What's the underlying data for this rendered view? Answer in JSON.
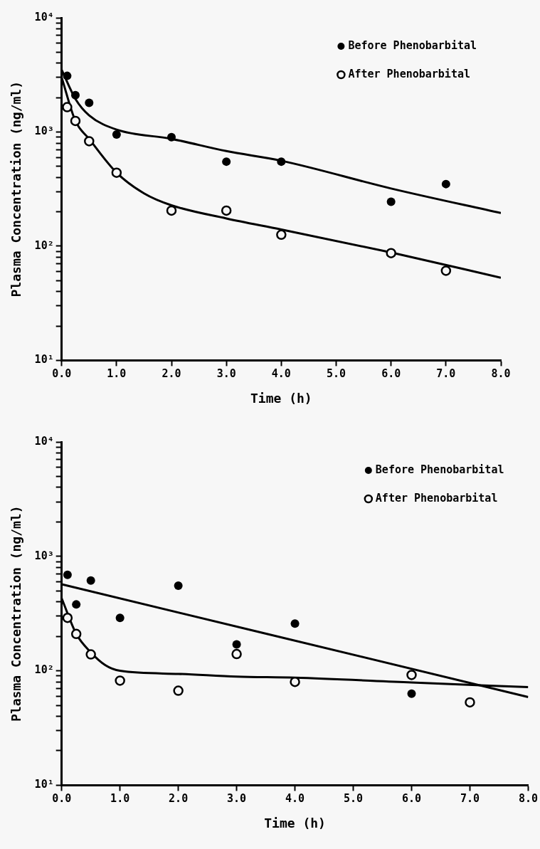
{
  "chart_data": [
    {
      "type": "scatter",
      "xlabel": "Time (h)",
      "ylabel": "Plasma Concentration (ng/ml)",
      "log": "y",
      "grid": false,
      "legend": "top right",
      "marker": "circle",
      "xlim": [
        0,
        8
      ],
      "xticks": [
        {
          "value": 0,
          "label": "0.0"
        },
        {
          "value": 1,
          "label": "1.0"
        },
        {
          "value": 2,
          "label": "2.0"
        },
        {
          "value": 3,
          "label": "3.0"
        },
        {
          "value": 4,
          "label": "4.0"
        },
        {
          "value": 5,
          "label": "5.0"
        },
        {
          "value": 6,
          "label": "6.0"
        },
        {
          "value": 7,
          "label": "7.0"
        },
        {
          "value": 8,
          "label": "8.0"
        }
      ],
      "ylim": [
        10,
        10000
      ],
      "yticks": [
        {
          "value": 10,
          "label": "10¹"
        },
        {
          "value": 20,
          "label": null
        },
        {
          "value": 30,
          "label": null
        },
        {
          "value": 40,
          "label": null
        },
        {
          "value": 50,
          "label": null
        },
        {
          "value": 60,
          "label": null
        },
        {
          "value": 70,
          "label": null
        },
        {
          "value": 80,
          "label": null
        },
        {
          "value": 90,
          "label": null
        },
        {
          "value": 100,
          "label": "10²"
        },
        {
          "value": 200,
          "label": null
        },
        {
          "value": 300,
          "label": null
        },
        {
          "value": 400,
          "label": null
        },
        {
          "value": 500,
          "label": null
        },
        {
          "value": 600,
          "label": null
        },
        {
          "value": 700,
          "label": null
        },
        {
          "value": 800,
          "label": null
        },
        {
          "value": 900,
          "label": null
        },
        {
          "value": 1000,
          "label": "10³"
        },
        {
          "value": 2000,
          "label": null
        },
        {
          "value": 3000,
          "label": null
        },
        {
          "value": 4000,
          "label": null
        },
        {
          "value": 5000,
          "label": null
        },
        {
          "value": 6000,
          "label": null
        },
        {
          "value": 7000,
          "label": null
        },
        {
          "value": 8000,
          "label": null
        },
        {
          "value": 9000,
          "label": null
        },
        {
          "value": 10000,
          "label": "10⁴"
        }
      ],
      "series": [
        {
          "name": "Before Phenobarbital",
          "color": "#000000",
          "x": [
            0.1,
            0.25,
            0.5,
            1,
            2,
            3,
            4,
            6,
            7
          ],
          "values": [
            3100,
            2100,
            1800,
            950,
            900,
            550,
            550,
            245,
            350
          ]
        },
        {
          "name": "After Phenobarbital",
          "color": "#000000",
          "x": [
            0.1,
            0.25,
            0.5,
            1,
            2,
            3,
            4,
            6,
            7
          ],
          "values": [
            1650,
            1250,
            830,
            440,
            205,
            205,
            126,
            87,
            61
          ]
        },
        {
          "type": "line",
          "color": "#000000",
          "marker": "none",
          "x": [
            0,
            0.25,
            0.5,
            1,
            2,
            3,
            4,
            6,
            8
          ],
          "values": [
            3500,
            1950,
            1400,
            1050,
            870,
            680,
            560,
            320,
            195
          ]
        },
        {
          "type": "line",
          "color": "#000000",
          "marker": "none",
          "x": [
            0,
            0.25,
            0.5,
            1,
            1.5,
            2,
            3,
            4,
            6,
            8
          ],
          "values": [
            3000,
            1250,
            870,
            440,
            290,
            228,
            175,
            140,
            88,
            53
          ]
        }
      ]
    },
    {
      "type": "scatter",
      "xlabel": "Time (h)",
      "ylabel": "Plasma Concentration (ng/ml)",
      "log": "y",
      "grid": false,
      "legend": "top right",
      "marker": "circle",
      "xlim": [
        0,
        8
      ],
      "xticks": [
        {
          "value": 0,
          "label": "0.0"
        },
        {
          "value": 1,
          "label": "1.0"
        },
        {
          "value": 2,
          "label": "2.0"
        },
        {
          "value": 3,
          "label": "3.0"
        },
        {
          "value": 4,
          "label": "4.0"
        },
        {
          "value": 5,
          "label": "5.0"
        },
        {
          "value": 6,
          "label": "6.0"
        },
        {
          "value": 7,
          "label": "7.0"
        },
        {
          "value": 8,
          "label": "8.0"
        }
      ],
      "ylim": [
        10,
        10000
      ],
      "yticks": [
        {
          "value": 10,
          "label": "10¹"
        },
        {
          "value": 20,
          "label": null
        },
        {
          "value": 30,
          "label": null
        },
        {
          "value": 40,
          "label": null
        },
        {
          "value": 50,
          "label": null
        },
        {
          "value": 60,
          "label": null
        },
        {
          "value": 70,
          "label": null
        },
        {
          "value": 80,
          "label": null
        },
        {
          "value": 90,
          "label": null
        },
        {
          "value": 100,
          "label": "10²"
        },
        {
          "value": 200,
          "label": null
        },
        {
          "value": 300,
          "label": null
        },
        {
          "value": 400,
          "label": null
        },
        {
          "value": 500,
          "label": null
        },
        {
          "value": 600,
          "label": null
        },
        {
          "value": 700,
          "label": null
        },
        {
          "value": 800,
          "label": null
        },
        {
          "value": 900,
          "label": null
        },
        {
          "value": 1000,
          "label": "10³"
        },
        {
          "value": 2000,
          "label": null
        },
        {
          "value": 3000,
          "label": null
        },
        {
          "value": 4000,
          "label": null
        },
        {
          "value": 5000,
          "label": null
        },
        {
          "value": 6000,
          "label": null
        },
        {
          "value": 7000,
          "label": null
        },
        {
          "value": 8000,
          "label": null
        },
        {
          "value": 9000,
          "label": null
        },
        {
          "value": 10000,
          "label": "10⁴"
        }
      ],
      "series": [
        {
          "name": "Before Phenobarbital",
          "color": "#000000",
          "x": [
            0.1,
            0.25,
            0.5,
            1,
            2,
            3,
            4,
            6
          ],
          "values": [
            690,
            380,
            615,
            290,
            555,
            170,
            259,
            63
          ]
        },
        {
          "name": "After Phenobarbital",
          "color": "#000000",
          "x": [
            0.1,
            0.25,
            0.5,
            1,
            2,
            3,
            4,
            6,
            7
          ],
          "values": [
            290,
            210,
            139,
            82,
            67,
            140,
            80,
            92,
            53
          ]
        },
        {
          "type": "line",
          "color": "#000000",
          "marker": "none",
          "x": [
            0,
            8
          ],
          "values": [
            570,
            59
          ]
        },
        {
          "type": "line",
          "color": "#000000",
          "marker": "none",
          "x": [
            0,
            0.25,
            0.5,
            0.75,
            1,
            2,
            3,
            4,
            6,
            8
          ],
          "values": [
            430,
            210,
            145,
            112,
            100,
            94,
            89,
            87,
            79,
            72
          ]
        }
      ]
    }
  ]
}
